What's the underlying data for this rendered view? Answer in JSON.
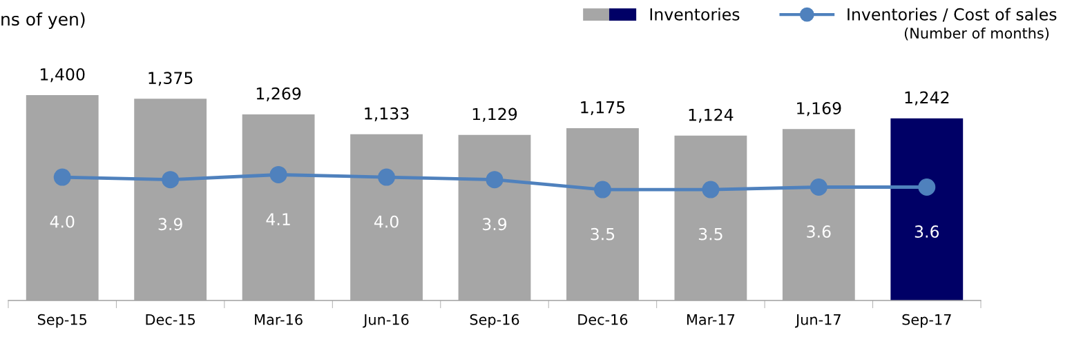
{
  "chart_data": {
    "type": "bar",
    "ylabel": "ns of yen)",
    "categories": [
      "Sep-15",
      "Dec-15",
      "Mar-16",
      "Jun-16",
      "Sep-16",
      "Dec-16",
      "Mar-17",
      "Jun-17",
      "Sep-17"
    ],
    "series": [
      {
        "name": "Inventories",
        "value_labels": [
          "1,400",
          "1,375",
          "1,269",
          "1,133",
          "1,129",
          "1,175",
          "1,124",
          "1,169",
          "1,242"
        ],
        "colors": [
          "#a6a6a6",
          "#a6a6a6",
          "#a6a6a6",
          "#a6a6a6",
          "#a6a6a6",
          "#a6a6a6",
          "#a6a6a6",
          "#a6a6a6",
          "#000066"
        ],
        "values": [
          1400,
          1375,
          1269,
          1133,
          1129,
          1175,
          1124,
          1169,
          1242
        ]
      },
      {
        "name": "Inventories / Cost of sales",
        "type": "line",
        "axis": "y2",
        "color": "#4f81bd",
        "marker": "circle",
        "value_labels": [
          "4.0",
          "3.9",
          "4.1",
          "4.0",
          "3.9",
          "3.5",
          "3.5",
          "3.6",
          "3.6"
        ],
        "values": [
          4.0,
          3.9,
          4.1,
          4.0,
          3.9,
          3.5,
          3.5,
          3.6,
          3.6
        ]
      }
    ],
    "legend": "top right",
    "grid": false,
    "annotations": [
      "(Number of months)"
    ]
  }
}
